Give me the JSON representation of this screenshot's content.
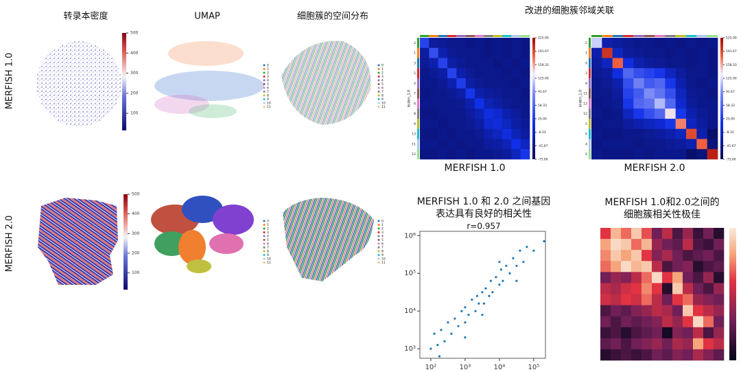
{
  "figure": {
    "row_labels": [
      "MERFISH 1.0",
      "MERFISH 2.0"
    ],
    "column_titles": [
      "转录本密度",
      "UMAP",
      "细胞簇的空间分布"
    ],
    "neighborhood_title": "改进的细胞簇邻域关联"
  },
  "density_colorbar": {
    "lim": [
      15,
      500
    ],
    "ticks": [
      100,
      200,
      300,
      400,
      500
    ]
  },
  "cluster_legend": [
    "0",
    "1",
    "2",
    "3",
    "4",
    "5",
    "6",
    "7",
    "8",
    "9",
    "10",
    "11"
  ],
  "neighborhood_colorbar": {
    "lim": [
      -75,
      225
    ],
    "ticks": [
      {
        "value": 225,
        "label": "225.00"
      },
      {
        "value": 191.67,
        "label": "191.67"
      },
      {
        "value": 158.33,
        "label": "158.33"
      },
      {
        "value": 125,
        "label": "125.00"
      },
      {
        "value": 91.67,
        "label": "91.67"
      },
      {
        "value": 58.33,
        "label": "58.33"
      },
      {
        "value": 25,
        "label": "25.00"
      },
      {
        "value": -8.33,
        "label": "-8.33"
      },
      {
        "value": -41.67,
        "label": "-41.67"
      },
      {
        "value": -75,
        "label": "-75.00"
      }
    ]
  },
  "neighborhood": [
    {
      "type": "heatmap",
      "caption": "MERFISH 1.0",
      "ylabel": "leiden_1.0",
      "row_labels": [
        "2",
        "1",
        "3",
        "5",
        "4",
        "7",
        "6",
        "8",
        "9",
        "13",
        "11",
        "12"
      ],
      "matrix": [
        [
          30,
          -30,
          -35,
          -40,
          -40,
          -45,
          -40,
          -45,
          -40,
          -45,
          -40,
          -45
        ],
        [
          -30,
          40,
          -20,
          -35,
          -40,
          -40,
          -40,
          -45,
          -40,
          -45,
          -40,
          -45
        ],
        [
          -35,
          -20,
          30,
          -25,
          -35,
          -40,
          -40,
          -40,
          -45,
          -40,
          -45,
          -40
        ],
        [
          -40,
          -35,
          -25,
          30,
          -20,
          -35,
          -40,
          -40,
          -40,
          -45,
          -40,
          -45
        ],
        [
          -40,
          -40,
          -35,
          -20,
          25,
          -25,
          -35,
          -40,
          -40,
          -40,
          -45,
          -40
        ],
        [
          -45,
          -40,
          -40,
          -35,
          -25,
          20,
          -20,
          -30,
          -35,
          -40,
          -40,
          -45
        ],
        [
          -40,
          -40,
          -40,
          -40,
          -35,
          -20,
          15,
          -15,
          -25,
          -35,
          -40,
          -40
        ],
        [
          -45,
          -45,
          -40,
          -40,
          -40,
          -30,
          -15,
          10,
          0,
          -20,
          -30,
          -40
        ],
        [
          -40,
          -40,
          -45,
          -40,
          -40,
          -35,
          -25,
          0,
          5,
          -10,
          -25,
          -35
        ],
        [
          -45,
          -45,
          -40,
          -45,
          -40,
          -40,
          -35,
          -20,
          -10,
          10,
          -15,
          -30
        ],
        [
          -40,
          -40,
          -45,
          -40,
          -45,
          -40,
          -40,
          -30,
          -25,
          -15,
          15,
          -10
        ],
        [
          -45,
          -45,
          -40,
          -45,
          -40,
          -45,
          -40,
          -40,
          -35,
          -30,
          -10,
          20
        ]
      ]
    },
    {
      "type": "heatmap",
      "caption": "MERFISH 2.0",
      "ylabel": "leiden_1.0",
      "row_labels": [
        "2",
        "1",
        "9",
        "3",
        "8",
        "11",
        "13",
        "12",
        "5",
        "6",
        "4",
        "0"
      ],
      "matrix": [
        [
          120,
          -20,
          -30,
          -35,
          -40,
          -40,
          -45,
          -40,
          -45,
          -40,
          -45,
          -40
        ],
        [
          -20,
          200,
          -10,
          -30,
          -35,
          -40,
          -40,
          -45,
          -40,
          -45,
          -40,
          -45
        ],
        [
          -30,
          -10,
          180,
          10,
          -20,
          -30,
          -35,
          -40,
          -40,
          -45,
          -40,
          -45
        ],
        [
          -35,
          -30,
          10,
          60,
          40,
          30,
          20,
          -10,
          -30,
          -40,
          -40,
          -45
        ],
        [
          -40,
          -35,
          -20,
          40,
          80,
          50,
          60,
          20,
          -20,
          -40,
          -45,
          -40
        ],
        [
          -40,
          -40,
          -30,
          30,
          50,
          90,
          70,
          40,
          -10,
          -35,
          -40,
          -45
        ],
        [
          -45,
          -40,
          -35,
          20,
          60,
          70,
          110,
          60,
          0,
          -30,
          -40,
          -40
        ],
        [
          -40,
          -45,
          -40,
          -10,
          20,
          40,
          60,
          140,
          20,
          -20,
          -35,
          -40
        ],
        [
          -45,
          -40,
          -40,
          -30,
          -20,
          -10,
          0,
          20,
          170,
          -10,
          -30,
          -40
        ],
        [
          -40,
          -45,
          -45,
          -40,
          -40,
          -35,
          -30,
          -20,
          -10,
          190,
          -20,
          -60
        ],
        [
          -45,
          -40,
          -40,
          -40,
          -45,
          -40,
          -40,
          -35,
          -30,
          -20,
          180,
          -50
        ],
        [
          -40,
          -45,
          -45,
          -45,
          -40,
          -45,
          -40,
          -40,
          -40,
          -60,
          -50,
          210
        ]
      ]
    }
  ],
  "scatter": {
    "type": "scatter",
    "title": [
      "MERFISH 1.0 和 2.0 之间基因",
      "表达具有良好的相关性"
    ],
    "subtitle": "r=0.957",
    "color": "#1f77b4",
    "log": true,
    "x": [
      100,
      126,
      158,
      178,
      200,
      251,
      316,
      398,
      501,
      631,
      794,
      1000,
      1000,
      1000,
      1260,
      1580,
      2000,
      2240,
      2510,
      3160,
      3160,
      3550,
      3980,
      5010,
      5620,
      6310,
      7940,
      10000,
      10000,
      11200,
      12600,
      15800,
      20000,
      25100,
      31600,
      31600,
      39800,
      50100,
      63100,
      100000,
      200000
    ],
    "y": [
      1000,
      2500,
      1260,
      631,
      3160,
      1580,
      5000,
      2510,
      6310,
      3980,
      10000,
      5010,
      12600,
      2000,
      7940,
      20000,
      10000,
      25100,
      15800,
      31600,
      7940,
      15800,
      39800,
      25100,
      63100,
      31600,
      79400,
      50100,
      200000,
      126000,
      63100,
      158000,
      100000,
      251000,
      158000,
      63100,
      398000,
      200000,
      501000,
      398000,
      708000
    ],
    "xlim": [
      48,
      220000
    ],
    "ylim": [
      560,
      1300000
    ],
    "xticks": [
      {
        "value": 100,
        "label": "10²"
      },
      {
        "value": 1000,
        "label": "10³"
      },
      {
        "value": 10000,
        "label": "10⁴"
      },
      {
        "value": 100000,
        "label": "10⁵"
      }
    ],
    "yticks": [
      {
        "value": 1000,
        "label": "10³"
      },
      {
        "value": 10000,
        "label": "10⁴"
      },
      {
        "value": 100000,
        "label": "10⁵"
      },
      {
        "value": 1000000,
        "label": "10⁶"
      }
    ]
  },
  "correlation": {
    "type": "heatmap",
    "title": [
      "MERFISH 1.0和2.0之间的",
      "细胞簇相关性极佳"
    ],
    "lim": [
      0,
      1
    ],
    "matrix": [
      [
        0.6,
        0.85,
        0.7,
        0.9,
        0.65,
        0.3,
        0.5,
        0.2,
        0.4,
        0.15,
        0.3,
        0.1
      ],
      [
        0.8,
        0.95,
        0.9,
        0.7,
        0.85,
        0.4,
        0.3,
        0.25,
        0.5,
        0.2,
        0.15,
        0.3
      ],
      [
        0.75,
        0.9,
        0.8,
        0.9,
        0.6,
        0.35,
        0.45,
        0.3,
        0.2,
        0.25,
        0.3,
        0.2
      ],
      [
        0.7,
        0.8,
        0.95,
        0.85,
        0.9,
        0.5,
        0.2,
        0.3,
        0.35,
        0.1,
        0.2,
        0.25
      ],
      [
        0.3,
        0.4,
        0.35,
        0.5,
        0.7,
        0.95,
        0.6,
        0.8,
        0.3,
        0.2,
        0.4,
        0.1
      ],
      [
        0.5,
        0.45,
        0.55,
        0.6,
        0.75,
        0.6,
        0.1,
        0.9,
        0.5,
        0.3,
        0.2,
        0.4
      ],
      [
        0.55,
        0.5,
        0.6,
        0.55,
        0.7,
        0.5,
        0.3,
        0.6,
        0.7,
        0.4,
        0.35,
        0.3
      ],
      [
        0.2,
        0.3,
        0.25,
        0.35,
        0.4,
        0.5,
        0.45,
        0.3,
        0.9,
        0.6,
        0.5,
        0.4
      ],
      [
        0.3,
        0.2,
        0.3,
        0.25,
        0.3,
        0.35,
        0.5,
        0.4,
        0.6,
        0.95,
        0.7,
        0.3
      ],
      [
        0.15,
        0.2,
        0.1,
        0.2,
        0.25,
        0.3,
        0.05,
        0.35,
        0.3,
        0.5,
        0.2,
        0.4
      ],
      [
        0.25,
        0.3,
        0.2,
        0.3,
        0.35,
        0.4,
        0.3,
        0.45,
        0.4,
        0.8,
        0.6,
        0.5
      ],
      [
        0.1,
        0.15,
        0.2,
        0.15,
        0.2,
        0.3,
        0.25,
        0.35,
        0.3,
        0.45,
        0.35,
        0.25
      ]
    ]
  }
}
